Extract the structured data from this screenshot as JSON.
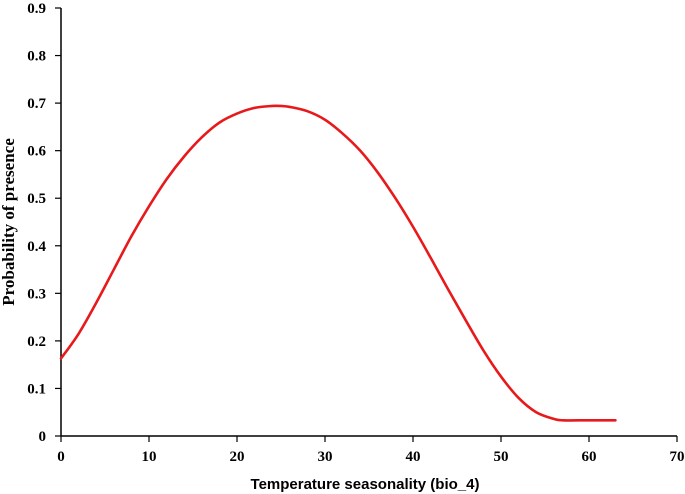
{
  "chart_data": {
    "type": "line",
    "title": "",
    "xlabel": "Temperature seasonality (bio_4)",
    "ylabel": "Probability of presence",
    "xlim": [
      0,
      70
    ],
    "ylim": [
      0,
      0.9
    ],
    "x_ticks": [
      0,
      10,
      20,
      30,
      40,
      50,
      60,
      70
    ],
    "y_ticks": [
      0,
      0.1,
      0.2,
      0.3,
      0.4,
      0.5,
      0.6,
      0.7,
      0.8,
      0.9
    ],
    "x_tick_labels": [
      "0",
      "10",
      "20",
      "30",
      "40",
      "50",
      "60",
      "70"
    ],
    "y_tick_labels": [
      "0",
      "0.1",
      "0.2",
      "0.3",
      "0.4",
      "0.5",
      "0.6",
      "0.7",
      "0.8",
      "0.9"
    ],
    "grid": false,
    "legend": "none",
    "series": [
      {
        "color": "#e8191b",
        "x": [
          0,
          2,
          4,
          6,
          8,
          10,
          12,
          14,
          16,
          18,
          20,
          22,
          24,
          25,
          26,
          28,
          30,
          32,
          34,
          36,
          38,
          40,
          42,
          44,
          46,
          48,
          50,
          52,
          54,
          56,
          57,
          60,
          63
        ],
        "y": [
          0.163,
          0.215,
          0.28,
          0.35,
          0.42,
          0.483,
          0.54,
          0.588,
          0.628,
          0.659,
          0.678,
          0.69,
          0.694,
          0.694,
          0.692,
          0.683,
          0.665,
          0.636,
          0.6,
          0.554,
          0.5,
          0.44,
          0.375,
          0.308,
          0.243,
          0.18,
          0.125,
          0.08,
          0.05,
          0.036,
          0.033,
          0.033,
          0.033
        ]
      }
    ]
  }
}
